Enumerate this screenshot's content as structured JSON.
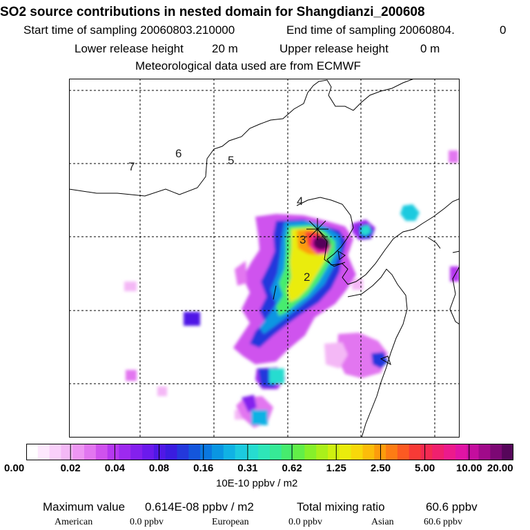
{
  "header": {
    "title": "SO2 source contributions in nested domain for Shangdianzi_200608",
    "start_label": "Start time of sampling 20060803.210000",
    "end_label": "End time of sampling 20060804.",
    "end_suffix": "0",
    "lower_label": "Lower release height",
    "lower_value": "20 m",
    "upper_label": "Upper release height",
    "upper_value": "0 m",
    "met_line": "Meteorological data used are from ECMWF"
  },
  "map_labels": [
    "7",
    "6",
    "5",
    "4",
    "3",
    "2"
  ],
  "colorbar": {
    "unit": "10E-10 ppbv / m2",
    "tick_labels": [
      "0.00",
      "0.02",
      "0.04",
      "0.08",
      "0.16",
      "0.31",
      "0.62",
      "1.25",
      "2.50",
      "5.00",
      "10.00",
      "20.00"
    ],
    "colors": [
      "#ffffff",
      "#fde8fd",
      "#f9d0fa",
      "#f4b8f6",
      "#ee96f3",
      "#e276f0",
      "#cf52ee",
      "#b638f0",
      "#9d29ef",
      "#8420ee",
      "#6b1aec",
      "#5018e6",
      "#3a1ce0",
      "#2438dc",
      "#1456dc",
      "#0a78e0",
      "#0a96e2",
      "#10b2e4",
      "#1ccadf",
      "#26dcd0",
      "#2ee6b8",
      "#36ea96",
      "#46ec6e",
      "#62ee48",
      "#86f02a",
      "#aaf01a",
      "#cef010",
      "#eaec0c",
      "#f8d80a",
      "#fcbc0a",
      "#fd9c0c",
      "#fd7c14",
      "#fc5a22",
      "#f83a36",
      "#f42a52",
      "#f0206e",
      "#ec1a8c",
      "#e014a4",
      "#c40e9e",
      "#a00a8a",
      "#7c0874",
      "#56065a"
    ]
  },
  "footer": {
    "max_label": "Maximum value",
    "max_value": "0.614E-08 ppbv / m2",
    "total_label": "Total mixing ratio",
    "total_value": "60.6 ppbv",
    "american_label": "American",
    "american_value": "0.0 ppbv",
    "european_label": "European",
    "european_value": "0.0 ppbv",
    "asian_label": "Asian",
    "asian_value": "60.6 ppbv"
  },
  "chart_data": {
    "type": "heatmap",
    "title": "SO2 source contributions in nested domain for Shangdianzi_200608",
    "colorbar_label": "10E-10 ppbv / m2",
    "levels": [
      0.0,
      0.02,
      0.04,
      0.08,
      0.16,
      0.31,
      0.62,
      1.25,
      2.5,
      5.0,
      10.0,
      20.0
    ],
    "grid": "dashed",
    "receptor_marker": "Shangdianzi (cross)",
    "day_labels": [
      "7",
      "6",
      "5",
      "4",
      "3",
      "2"
    ],
    "maximum_value": "0.614E-08 ppbv / m2",
    "total_mixing_ratio_ppbv": 60.6,
    "contributions_ppbv": {
      "American": 0.0,
      "European": 0.0,
      "Asian": 60.6
    }
  }
}
